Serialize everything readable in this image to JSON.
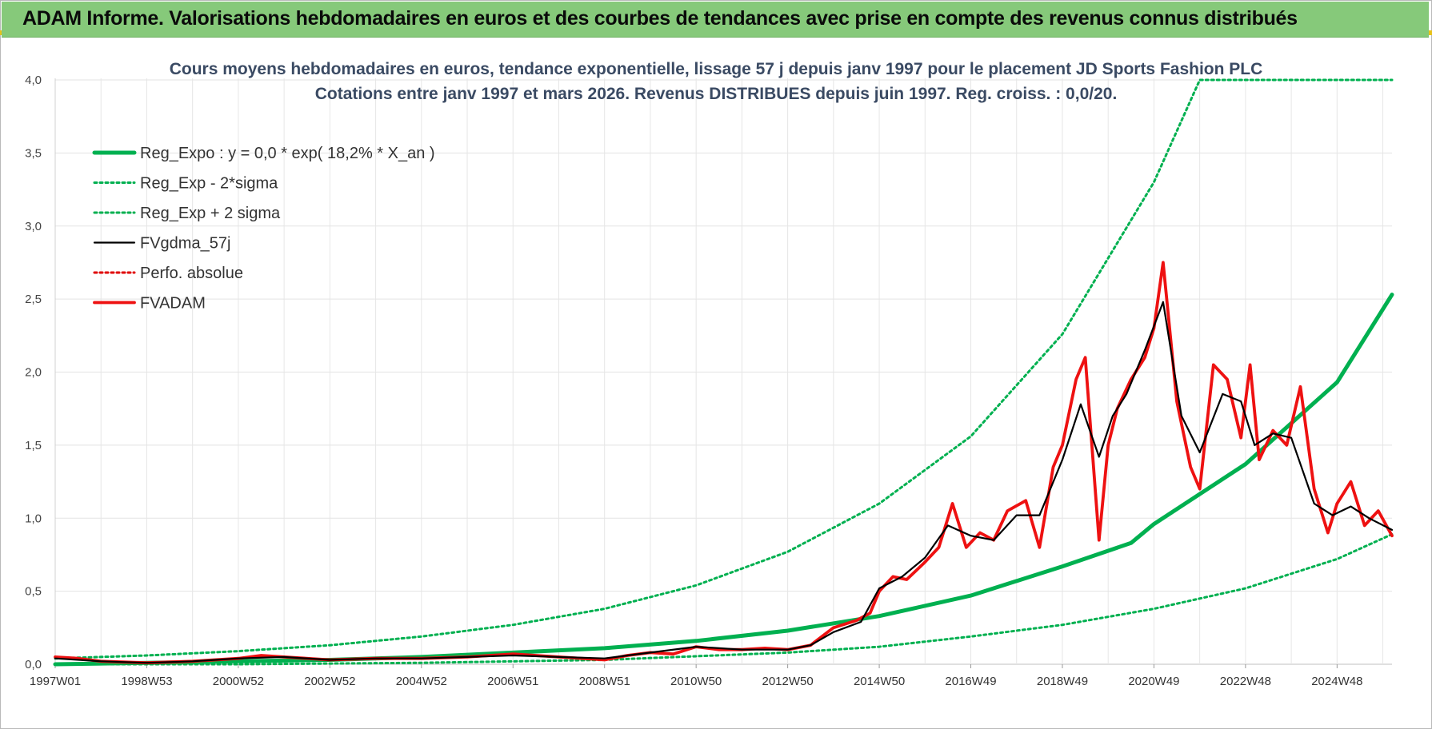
{
  "banner": {
    "title": "ADAM Informe. Valorisations hebdomadaires en euros et des courbes de tendances avec prise en compte des revenus connus distribués",
    "background": "#86c97a"
  },
  "chart_data": {
    "type": "line",
    "title": "Cours moyens hebdomadaires en euros, tendance exponentielle, lissage 57 j depuis janv 1997  pour le placement JD Sports Fashion PLC",
    "subtitle": "Cotations entre janv 1997 et mars 2026. Revenus DISTRIBUES depuis juin 1997. Reg. croiss. : 0,0/20.",
    "xlabel": "",
    "ylabel": "",
    "xlim": [
      1997.0,
      2026.2
    ],
    "ylim": [
      0,
      4.0
    ],
    "y_ticks": [
      "0,0",
      "0,5",
      "1,0",
      "1,5",
      "2,0",
      "2,5",
      "3,0",
      "3,5",
      "4,0"
    ],
    "x_ticks": [
      {
        "label": "1997W01",
        "year": 1997.0
      },
      {
        "label": "1998W53",
        "year": 1999.0
      },
      {
        "label": "2000W52",
        "year": 2001.0
      },
      {
        "label": "2002W52",
        "year": 2003.0
      },
      {
        "label": "2004W52",
        "year": 2005.0
      },
      {
        "label": "2006W51",
        "year": 2007.0
      },
      {
        "label": "2008W51",
        "year": 2009.0
      },
      {
        "label": "2010W50",
        "year": 2011.0
      },
      {
        "label": "2012W50",
        "year": 2013.0
      },
      {
        "label": "2014W50",
        "year": 2015.0
      },
      {
        "label": "2016W49",
        "year": 2017.0
      },
      {
        "label": "2018W49",
        "year": 2019.0
      },
      {
        "label": "2020W49",
        "year": 2021.0
      },
      {
        "label": "2022W48",
        "year": 2023.0
      },
      {
        "label": "2024W48",
        "year": 2025.0
      }
    ],
    "grid": true,
    "legend_position": "top-left",
    "series": [
      {
        "name": "Reg_Expo : y = 0,0 * exp( 18,2% *  X_an )",
        "color": "#00b050",
        "style": "solid-thick",
        "x": [
          1997.0,
          1999.0,
          2001.0,
          2003.0,
          2005.0,
          2007.0,
          2009.0,
          2011.0,
          2013.0,
          2015.0,
          2017.0,
          2019.0,
          2020.5,
          2021.0,
          2023.0,
          2025.0,
          2026.2
        ],
        "y": [
          0.0,
          0.01,
          0.02,
          0.03,
          0.05,
          0.08,
          0.11,
          0.16,
          0.23,
          0.33,
          0.47,
          0.67,
          0.83,
          0.96,
          1.37,
          1.93,
          2.53
        ]
      },
      {
        "name": "Reg_Exp - 2*sigma",
        "color": "#00b050",
        "style": "dotted",
        "x": [
          1997.0,
          2001.0,
          2005.0,
          2009.0,
          2013.0,
          2015.0,
          2017.0,
          2019.0,
          2021.0,
          2023.0,
          2025.0,
          2026.2
        ],
        "y": [
          0.0,
          0.0,
          0.01,
          0.03,
          0.08,
          0.12,
          0.19,
          0.27,
          0.38,
          0.52,
          0.72,
          0.89
        ]
      },
      {
        "name": "Reg_Exp + 2 sigma",
        "color": "#00b050",
        "style": "dotted",
        "x": [
          1997.0,
          1999.0,
          2001.0,
          2003.0,
          2005.0,
          2007.0,
          2009.0,
          2011.0,
          2013.0,
          2015.0,
          2017.0,
          2019.0,
          2021.0,
          2022.0,
          2026.2
        ],
        "y": [
          0.04,
          0.06,
          0.09,
          0.13,
          0.19,
          0.27,
          0.38,
          0.54,
          0.77,
          1.1,
          1.56,
          2.26,
          3.3,
          4.0,
          4.0
        ]
      },
      {
        "name": "FVgdma_57j",
        "color": "#000000",
        "style": "solid",
        "x": [
          1997.0,
          1998.0,
          1999.0,
          2000.0,
          2001.0,
          2002.0,
          2003.0,
          2004.0,
          2005.0,
          2006.0,
          2007.0,
          2008.0,
          2009.0,
          2010.0,
          2011.0,
          2012.0,
          2013.0,
          2013.5,
          2014.0,
          2014.6,
          2015.0,
          2015.5,
          2016.0,
          2016.5,
          2017.0,
          2017.5,
          2018.0,
          2018.5,
          2019.0,
          2019.4,
          2019.8,
          2020.1,
          2020.4,
          2020.8,
          2021.2,
          2021.6,
          2022.0,
          2022.5,
          2022.9,
          2023.2,
          2023.6,
          2024.0,
          2024.5,
          2024.9,
          2025.3,
          2025.7,
          2026.2
        ],
        "y": [
          0.04,
          0.02,
          0.01,
          0.02,
          0.04,
          0.05,
          0.03,
          0.04,
          0.04,
          0.05,
          0.06,
          0.05,
          0.04,
          0.08,
          0.12,
          0.1,
          0.1,
          0.13,
          0.22,
          0.29,
          0.52,
          0.6,
          0.73,
          0.95,
          0.88,
          0.85,
          1.02,
          1.02,
          1.4,
          1.78,
          1.42,
          1.7,
          1.85,
          2.15,
          2.48,
          1.7,
          1.45,
          1.85,
          1.8,
          1.5,
          1.58,
          1.55,
          1.1,
          1.02,
          1.08,
          1.0,
          0.92
        ]
      },
      {
        "name": "Perfo. absolue",
        "color": "#e00000",
        "style": "dotted",
        "x": [],
        "y": []
      },
      {
        "name": "FVADAM",
        "color": "#ee1111",
        "style": "solid-thick",
        "x": [
          1997.0,
          1997.5,
          1998.0,
          1999.0,
          2000.0,
          2001.0,
          2001.5,
          2002.0,
          2003.0,
          2004.0,
          2005.0,
          2006.0,
          2006.5,
          2007.0,
          2008.0,
          2009.0,
          2009.5,
          2010.0,
          2010.5,
          2011.0,
          2011.5,
          2012.0,
          2012.5,
          2013.0,
          2013.5,
          2014.0,
          2014.5,
          2014.8,
          2015.0,
          2015.3,
          2015.6,
          2016.0,
          2016.3,
          2016.6,
          2016.9,
          2017.2,
          2017.5,
          2017.8,
          2018.2,
          2018.5,
          2018.8,
          2019.0,
          2019.3,
          2019.5,
          2019.8,
          2020.0,
          2020.2,
          2020.5,
          2020.8,
          2021.0,
          2021.2,
          2021.5,
          2021.8,
          2022.0,
          2022.3,
          2022.6,
          2022.9,
          2023.1,
          2023.3,
          2023.6,
          2023.9,
          2024.2,
          2024.5,
          2024.8,
          2025.0,
          2025.3,
          2025.6,
          2025.9,
          2026.2
        ],
        "y": [
          0.05,
          0.04,
          0.02,
          0.01,
          0.02,
          0.04,
          0.06,
          0.05,
          0.03,
          0.04,
          0.04,
          0.05,
          0.06,
          0.07,
          0.05,
          0.03,
          0.06,
          0.08,
          0.07,
          0.12,
          0.1,
          0.1,
          0.11,
          0.1,
          0.13,
          0.25,
          0.3,
          0.35,
          0.5,
          0.6,
          0.58,
          0.7,
          0.8,
          1.1,
          0.8,
          0.9,
          0.85,
          1.05,
          1.12,
          0.8,
          1.35,
          1.5,
          1.95,
          2.1,
          0.85,
          1.5,
          1.75,
          1.95,
          2.1,
          2.3,
          2.75,
          1.8,
          1.35,
          1.2,
          2.05,
          1.95,
          1.55,
          2.05,
          1.4,
          1.6,
          1.5,
          1.9,
          1.2,
          0.9,
          1.1,
          1.25,
          0.95,
          1.05,
          0.88
        ]
      }
    ]
  }
}
